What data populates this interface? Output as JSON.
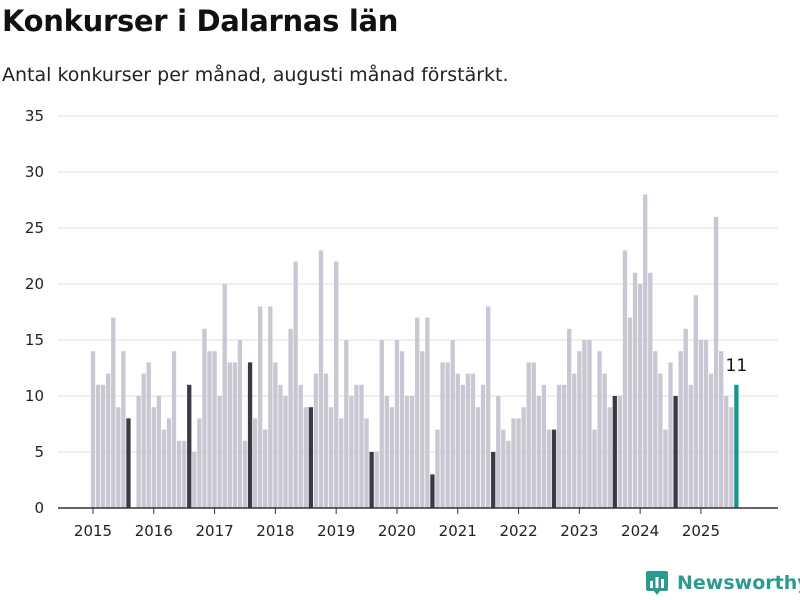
{
  "title": "Konkurser i Dalarnas län",
  "subtitle": "Antal konkurser per månad, augusti månad förstärkt.",
  "brand": {
    "name": "Newsworthy",
    "icon": "newsworthy-logo-icon",
    "color": "#2b9a8f"
  },
  "colors": {
    "regular": "#c8c7d3",
    "august": "#3b3944",
    "latest": "#14998f",
    "grid": "#dcdcdc",
    "axis": "#333333"
  },
  "chart_data": {
    "type": "bar",
    "title": "Konkurser i Dalarnas län",
    "subtitle": "Antal konkurser per månad, augusti månad förstärkt.",
    "xlabel": "",
    "ylabel": "",
    "ylim": [
      0,
      35
    ],
    "yticks": [
      0,
      5,
      10,
      15,
      20,
      25,
      30,
      35
    ],
    "grid": true,
    "start": "2015-01",
    "end": "2025-08",
    "xtick_labels": [
      "2015",
      "2016",
      "2017",
      "2018",
      "2019",
      "2020",
      "2021",
      "2022",
      "2023",
      "2024",
      "2025"
    ],
    "highlight": "august bars darker; latest month teal with value label",
    "latest_label": "11",
    "values": [
      14,
      11,
      11,
      12,
      17,
      9,
      14,
      8,
      0,
      10,
      12,
      13,
      9,
      10,
      7,
      8,
      14,
      6,
      6,
      11,
      5,
      8,
      16,
      14,
      14,
      10,
      20,
      13,
      13,
      15,
      6,
      13,
      8,
      18,
      7,
      18,
      13,
      11,
      10,
      16,
      22,
      11,
      9,
      9,
      12,
      23,
      12,
      9,
      22,
      8,
      15,
      10,
      11,
      11,
      8,
      5,
      5,
      15,
      10,
      9,
      15,
      14,
      10,
      10,
      17,
      14,
      17,
      3,
      7,
      13,
      13,
      15,
      12,
      11,
      12,
      12,
      9,
      11,
      18,
      5,
      10,
      7,
      6,
      8,
      8,
      9,
      13,
      13,
      10,
      11,
      7,
      7,
      11,
      11,
      16,
      12,
      14,
      15,
      15,
      7,
      14,
      12,
      9,
      10,
      10,
      23,
      17,
      21,
      20,
      28,
      21,
      14,
      12,
      7,
      13,
      10,
      14,
      16,
      11,
      19,
      15,
      15,
      12,
      26,
      14,
      10,
      9,
      11
    ]
  }
}
